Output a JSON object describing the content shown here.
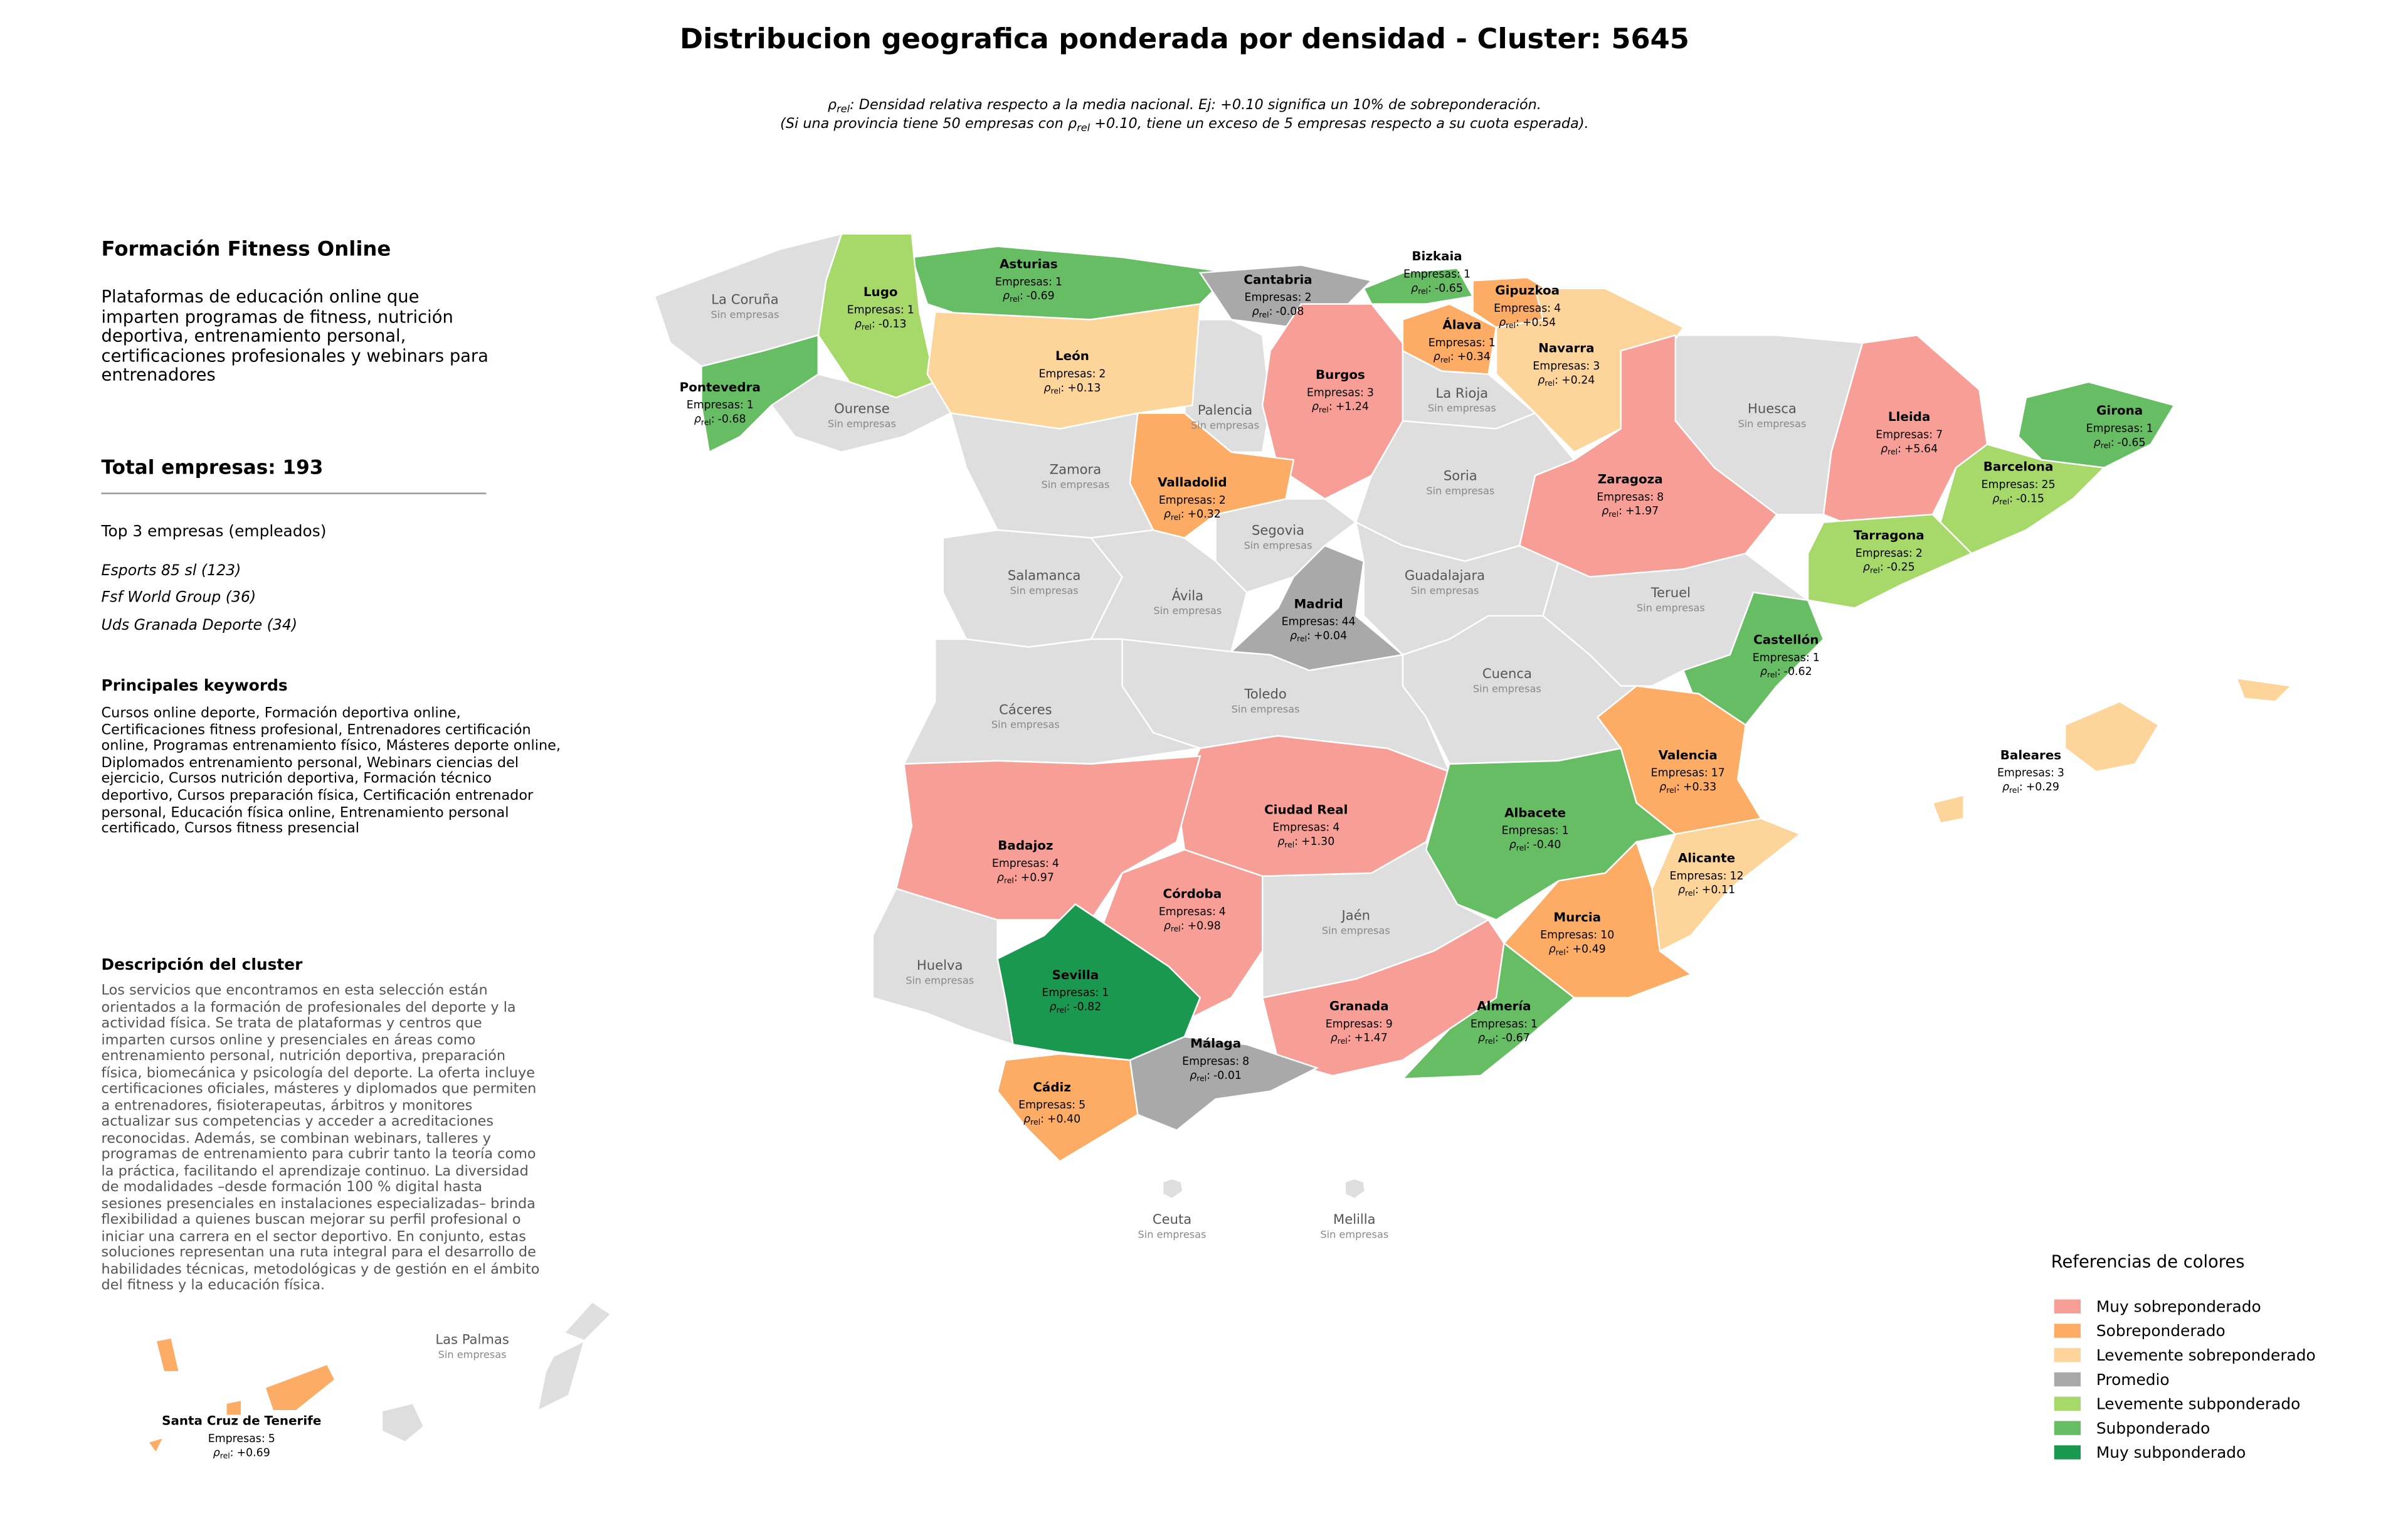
{
  "map": {
    "title": "Distribucion geografica ponderada por densidad - Cluster: 5645",
    "rho_symbol": "ρ",
    "rho_sub": "rel",
    "rho_colon": ":",
    "note_line1_after": ": Densidad relativa respecto a la media nacional. Ej: +0.10 significa un 10% de sobreponderación.",
    "note_line2_before": "(Si una provincia tiene 50 empresas con ",
    "note_line2_after": " +0.10, tiene un exceso de 5 empresas respecto a su cuota esperada).",
    "empresas_label": "Empresas:",
    "empty_label": "Sin empresas",
    "provinces": [
      {
        "name": "Asturias",
        "empresas": 1,
        "rho": "-0.69",
        "color": "#66bd63"
      },
      {
        "name": "Lugo",
        "empresas": 1,
        "rho": "-0.13",
        "color": "#a6d96a"
      },
      {
        "name": "Cantabria",
        "empresas": 2,
        "rho": "-0.08",
        "color": "#a9a9a9"
      },
      {
        "name": "Bizkaia",
        "empresas": 1,
        "rho": "-0.65",
        "color": "#66bd63"
      },
      {
        "name": "Gipuzkoa",
        "empresas": 4,
        "rho": "+0.54",
        "color": "#fcac64"
      },
      {
        "name": "Álava",
        "empresas": 1,
        "rho": "+0.34",
        "color": "#fcac64"
      },
      {
        "name": "Navarra",
        "empresas": 3,
        "rho": "+0.24",
        "color": "#fdd49a"
      },
      {
        "name": "León",
        "empresas": 2,
        "rho": "+0.13",
        "color": "#fdd49a"
      },
      {
        "name": "Burgos",
        "empresas": 3,
        "rho": "+1.24",
        "color": "#f79e97"
      },
      {
        "name": "Pontevedra",
        "empresas": 1,
        "rho": "-0.68",
        "color": "#66bd63"
      },
      {
        "name": "Lleida",
        "empresas": 7,
        "rho": "+5.64",
        "color": "#f79e97"
      },
      {
        "name": "Girona",
        "empresas": 1,
        "rho": "-0.65",
        "color": "#66bd63"
      },
      {
        "name": "Zaragoza",
        "empresas": 8,
        "rho": "+1.97",
        "color": "#f79e97"
      },
      {
        "name": "Barcelona",
        "empresas": 25,
        "rho": "-0.15",
        "color": "#a6d96a"
      },
      {
        "name": "Valladolid",
        "empresas": 2,
        "rho": "+0.32",
        "color": "#fcac64"
      },
      {
        "name": "Tarragona",
        "empresas": 2,
        "rho": "-0.25",
        "color": "#a6d96a"
      },
      {
        "name": "Madrid",
        "empresas": 44,
        "rho": "+0.04",
        "color": "#a9a9a9"
      },
      {
        "name": "Castellón",
        "empresas": 1,
        "rho": "-0.62",
        "color": "#66bd63"
      },
      {
        "name": "Valencia",
        "empresas": 17,
        "rho": "+0.33",
        "color": "#fcac64"
      },
      {
        "name": "Ciudad Real",
        "empresas": 4,
        "rho": "+1.30",
        "color": "#f79e97"
      },
      {
        "name": "Albacete",
        "empresas": 1,
        "rho": "-0.40",
        "color": "#66bd63"
      },
      {
        "name": "Badajoz",
        "empresas": 4,
        "rho": "+0.97",
        "color": "#f79e97"
      },
      {
        "name": "Alicante",
        "empresas": 12,
        "rho": "+0.11",
        "color": "#fdd49a"
      },
      {
        "name": "Córdoba",
        "empresas": 4,
        "rho": "+0.98",
        "color": "#f79e97"
      },
      {
        "name": "Murcia",
        "empresas": 10,
        "rho": "+0.49",
        "color": "#fcac64"
      },
      {
        "name": "Sevilla",
        "empresas": 1,
        "rho": "-0.82",
        "color": "#1a9850"
      },
      {
        "name": "Granada",
        "empresas": 9,
        "rho": "+1.47",
        "color": "#f79e97"
      },
      {
        "name": "Almería",
        "empresas": 1,
        "rho": "-0.67",
        "color": "#66bd63"
      },
      {
        "name": "Málaga",
        "empresas": 8,
        "rho": "-0.01",
        "color": "#a9a9a9"
      },
      {
        "name": "Cádiz",
        "empresas": 5,
        "rho": "+0.40",
        "color": "#fcac64"
      },
      {
        "name": "Baleares",
        "empresas": 3,
        "rho": "+0.29",
        "color": "#fdd49a"
      },
      {
        "name": "Santa Cruz de Tenerife",
        "empresas": 5,
        "rho": "+0.69",
        "color": "#fcac64"
      }
    ],
    "empty_provinces": [
      "La Coruña",
      "Ourense",
      "Palencia",
      "La Rioja",
      "Huesca",
      "Zamora",
      "Soria",
      "Segovia",
      "Salamanca",
      "Guadalajara",
      "Ávila",
      "Teruel",
      "Cuenca",
      "Toledo",
      "Cáceres",
      "Jaén",
      "Huelva",
      "Ceuta",
      "Melilla",
      "Las Palmas"
    ]
  },
  "panel": {
    "title": "Formación Fitness Online",
    "description": "Plataformas de educación online que imparten programas de fitness, nutrición deportiva, entrenamiento personal, certificaciones profesionales y webinars para entrenadores",
    "total_label": "Total empresas:",
    "total": 193,
    "top_title": "Top 3 empresas (empleados)",
    "top": [
      "Esports 85 sl (123)",
      "Fsf World Group (36)",
      "Uds Granada Deporte (34)"
    ],
    "keywords_title": "Principales keywords",
    "keywords": "Cursos online deporte, Formación deportiva online, Certificaciones fitness profesional, Entrenadores certificación online, Programas entrenamiento físico, Másteres deporte online, Diplomados entrenamiento personal, Webinars ciencias del ejercicio, Cursos nutrición deportiva, Formación técnico deportivo, Cursos preparación física, Certificación entrenador personal, Educación física online, Entrenamiento personal certificado, Cursos fitness presencial",
    "cluster_title": "Descripción del cluster",
    "cluster_text": "Los servicios que encontramos en esta selección están orientados a la formación de profesionales del deporte y la actividad física. Se trata de plataformas y centros que imparten cursos online y presenciales en áreas como entrenamiento personal, nutrición deportiva, preparación física, biomecánica y psicología del deporte. La oferta incluye certificaciones oficiales, másteres y diplomados que permiten a entrenadores, fisioterapeutas, árbitros y monitores actualizar sus competencias y acceder a acreditaciones reconocidas. Además, se combinan webinars, talleres y programas de entrenamiento para cubrir tanto la teoría como la práctica, facilitando el aprendizaje continuo. La diversidad de modalidades –desde formación 100 % digital hasta sesiones presenciales en instalaciones especializadas– brinda flexibilidad a quienes buscan mejorar su perfil profesional o iniciar una carrera en el sector deportivo. En conjunto, estas soluciones representan una ruta integral para el desarrollo de habilidades técnicas, metodológicas y de gestión en el ámbito del fitness y la educación física."
  },
  "legend": {
    "title": "Referencias de colores",
    "items": [
      {
        "name": "Muy sobreponderado",
        "color": "#f79e97"
      },
      {
        "name": "Sobreponderado",
        "color": "#fcac64"
      },
      {
        "name": "Levemente sobreponderado",
        "color": "#fdd49a"
      },
      {
        "name": "Promedio",
        "color": "#a9a9a9"
      },
      {
        "name": "Levemente subponderado",
        "color": "#a6d96a"
      },
      {
        "name": "Subponderado",
        "color": "#66bd63"
      },
      {
        "name": "Muy subponderado",
        "color": "#1a9850"
      }
    ]
  }
}
